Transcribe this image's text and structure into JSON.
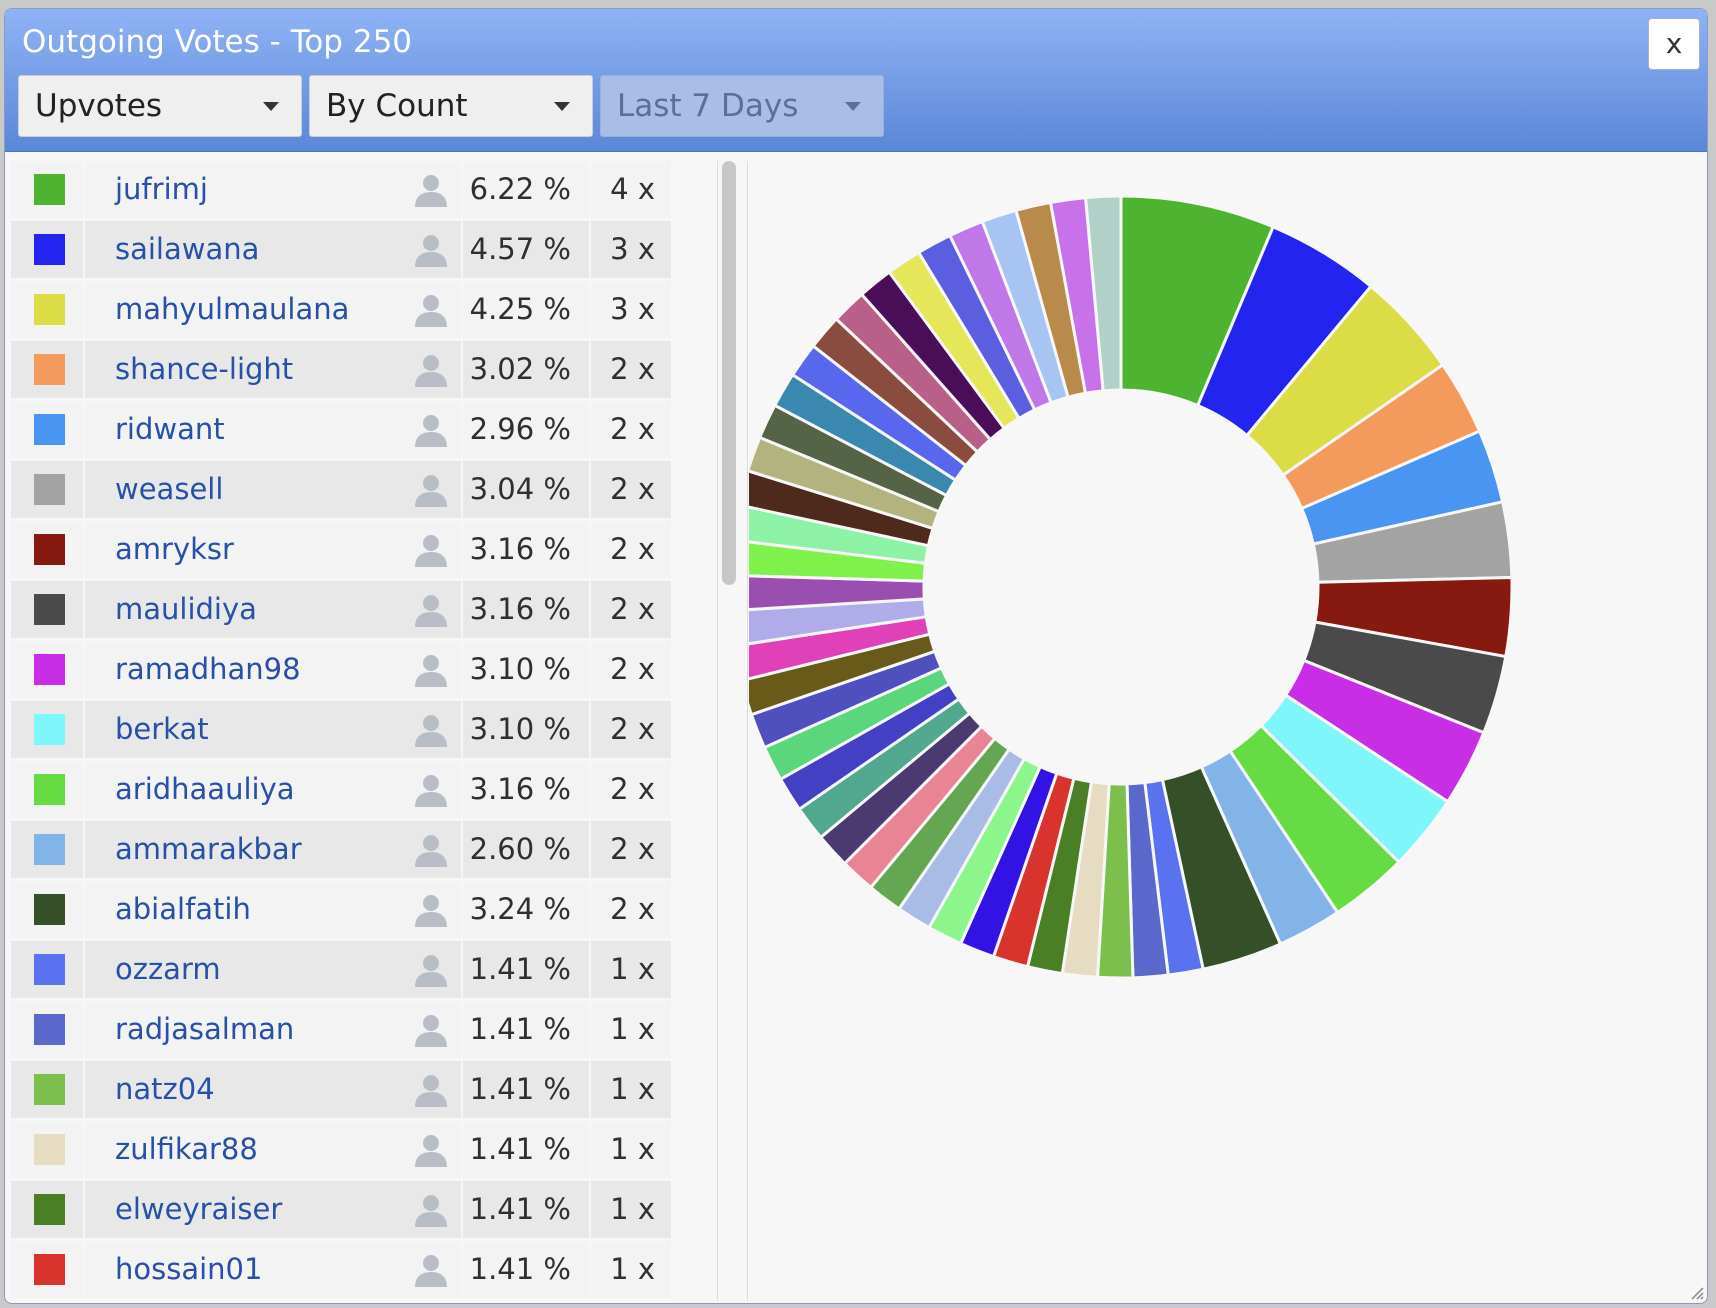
{
  "dialog": {
    "title": "Outgoing Votes - Top 250",
    "close_label": "x",
    "filters": [
      {
        "label": "Upvotes",
        "enabled": true
      },
      {
        "label": "By Count",
        "enabled": true
      },
      {
        "label": "Last 7 Days",
        "enabled": false
      }
    ]
  },
  "list": {
    "rows": [
      {
        "name": "jufrimj",
        "pct": "6.22 %",
        "count": "4 x",
        "color": "#4fb332"
      },
      {
        "name": "sailawana",
        "pct": "4.57 %",
        "count": "3 x",
        "color": "#2424f0"
      },
      {
        "name": "mahyulmaulana",
        "pct": "4.25 %",
        "count": "3 x",
        "color": "#dcdc46"
      },
      {
        "name": "shance-light",
        "pct": "3.02 %",
        "count": "2 x",
        "color": "#f29b5c"
      },
      {
        "name": "ridwant",
        "pct": "2.96 %",
        "count": "2 x",
        "color": "#4a94f2"
      },
      {
        "name": "weasell",
        "pct": "3.04 %",
        "count": "2 x",
        "color": "#a3a3a3"
      },
      {
        "name": "amryksr",
        "pct": "3.16 %",
        "count": "2 x",
        "color": "#861a10"
      },
      {
        "name": "maulidiya",
        "pct": "3.16 %",
        "count": "2 x",
        "color": "#4a4a4a"
      },
      {
        "name": "ramadhan98",
        "pct": "3.10 %",
        "count": "2 x",
        "color": "#c82ee6"
      },
      {
        "name": "berkat",
        "pct": "3.10 %",
        "count": "2 x",
        "color": "#7ff7fa"
      },
      {
        "name": "aridhaauliya",
        "pct": "3.16 %",
        "count": "2 x",
        "color": "#66db44"
      },
      {
        "name": "ammarakbar",
        "pct": "2.60 %",
        "count": "2 x",
        "color": "#82b4e8"
      },
      {
        "name": "abialfatih",
        "pct": "3.24 %",
        "count": "2 x",
        "color": "#354f28"
      },
      {
        "name": "ozzarm",
        "pct": "1.41 %",
        "count": "1 x",
        "color": "#5a72f0"
      },
      {
        "name": "radjasalman",
        "pct": "1.41 %",
        "count": "1 x",
        "color": "#5a68cc"
      },
      {
        "name": "natz04",
        "pct": "1.41 %",
        "count": "1 x",
        "color": "#7cbf4c"
      },
      {
        "name": "zulfikar88",
        "pct": "1.41 %",
        "count": "1 x",
        "color": "#e6dcc1"
      },
      {
        "name": "elweyraiser",
        "pct": "1.41 %",
        "count": "1 x",
        "color": "#4a7f26"
      },
      {
        "name": "hossain01",
        "pct": "1.41 %",
        "count": "1 x",
        "color": "#d9332e"
      }
    ]
  },
  "chart_data": {
    "type": "pie",
    "donut": true,
    "slices": [
      {
        "value": 6.22,
        "color": "#4fb332"
      },
      {
        "value": 4.57,
        "color": "#2424f0"
      },
      {
        "value": 4.25,
        "color": "#dcdc46"
      },
      {
        "value": 3.02,
        "color": "#f29b5c"
      },
      {
        "value": 2.96,
        "color": "#4a94f2"
      },
      {
        "value": 3.04,
        "color": "#a3a3a3"
      },
      {
        "value": 3.16,
        "color": "#861a10"
      },
      {
        "value": 3.16,
        "color": "#4a4a4a"
      },
      {
        "value": 3.1,
        "color": "#c82ee6"
      },
      {
        "value": 3.1,
        "color": "#7ff7fa"
      },
      {
        "value": 3.16,
        "color": "#66db44"
      },
      {
        "value": 2.6,
        "color": "#82b4e8"
      },
      {
        "value": 3.24,
        "color": "#354f28"
      },
      {
        "value": 1.41,
        "color": "#5a72f0"
      },
      {
        "value": 1.41,
        "color": "#5a68cc"
      },
      {
        "value": 1.41,
        "color": "#7cbf4c"
      },
      {
        "value": 1.41,
        "color": "#e6dcc1"
      },
      {
        "value": 1.41,
        "color": "#4a7f26"
      },
      {
        "value": 1.41,
        "color": "#d9332e"
      },
      {
        "value": 1.41,
        "color": "#3312e6"
      },
      {
        "value": 1.41,
        "color": "#8cf58c"
      },
      {
        "value": 1.41,
        "color": "#a8bce6"
      },
      {
        "value": 1.41,
        "color": "#65a652"
      },
      {
        "value": 1.41,
        "color": "#e88494"
      },
      {
        "value": 1.41,
        "color": "#4a3a70"
      },
      {
        "value": 1.41,
        "color": "#52a88e"
      },
      {
        "value": 1.41,
        "color": "#4440c4"
      },
      {
        "value": 1.41,
        "color": "#5cd67c"
      },
      {
        "value": 1.41,
        "color": "#4f50be"
      },
      {
        "value": 1.41,
        "color": "#6a5a1a"
      },
      {
        "value": 1.41,
        "color": "#e040b8"
      },
      {
        "value": 1.41,
        "color": "#b0acea"
      },
      {
        "value": 1.41,
        "color": "#9a4fb0"
      },
      {
        "value": 1.41,
        "color": "#80f04c"
      },
      {
        "value": 1.41,
        "color": "#8ef2a6"
      },
      {
        "value": 1.41,
        "color": "#4d2a1c"
      },
      {
        "value": 1.41,
        "color": "#b3b37f"
      },
      {
        "value": 1.41,
        "color": "#556346"
      },
      {
        "value": 1.41,
        "color": "#3a88b0"
      },
      {
        "value": 1.41,
        "color": "#5966ee"
      },
      {
        "value": 1.41,
        "color": "#8a4c3e"
      },
      {
        "value": 1.41,
        "color": "#b86088"
      },
      {
        "value": 1.41,
        "color": "#4a0e58"
      },
      {
        "value": 1.41,
        "color": "#e6e65a"
      },
      {
        "value": 1.41,
        "color": "#5c5ee0"
      },
      {
        "value": 1.41,
        "color": "#c078e8"
      },
      {
        "value": 1.41,
        "color": "#a8c4f2"
      },
      {
        "value": 1.41,
        "color": "#b88a4c"
      },
      {
        "value": 1.41,
        "color": "#c872ea"
      },
      {
        "value": 1.41,
        "color": "#b0d0c8"
      }
    ]
  }
}
